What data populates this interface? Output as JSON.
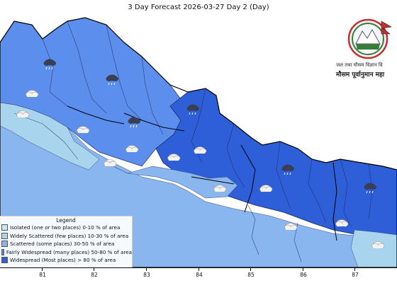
{
  "title": "3 Day Forecast 2026-03-27 Day 2 (Day)",
  "logo": {
    "line1": "जल तथा मौसम विज्ञान वि",
    "line2": "मौसम पूर्वानुमान महा"
  },
  "legend": {
    "title": "Legend",
    "items": [
      {
        "label": "Isolated (one or two places)  0-10 % of area",
        "color": "#c9e8f5"
      },
      {
        "label": "Widely Scattered (few places)  10-30 % of area",
        "color": "#a9d4ee"
      },
      {
        "label": "Scattered (some places)  30-50 % of area",
        "color": "#8ab6ef"
      },
      {
        "label": "Fairly Widespread (many places)  50-80 % of area",
        "color": "#5c8eee"
      },
      {
        "label": "Widespread (Most places) > 80 % of area",
        "color": "#2e5ed8"
      }
    ]
  },
  "x_axis": {
    "ticks": [
      "81",
      "82",
      "83",
      "84",
      "85",
      "86",
      "87"
    ]
  },
  "weather_icons": [
    {
      "type": "rain-cloud-icon"
    },
    {
      "type": "rain-cloud-icon"
    },
    {
      "type": "rain-cloud-icon"
    },
    {
      "type": "rain-cloud-icon"
    },
    {
      "type": "rain-cloud-icon"
    },
    {
      "type": "rain-cloud-icon"
    },
    {
      "type": "snow-cloud-icon"
    },
    {
      "type": "snow-cloud-icon"
    },
    {
      "type": "snow-cloud-icon"
    },
    {
      "type": "snow-cloud-icon"
    },
    {
      "type": "snow-cloud-icon"
    },
    {
      "type": "snow-cloud-icon"
    },
    {
      "type": "snow-cloud-icon"
    },
    {
      "type": "snow-cloud-icon"
    },
    {
      "type": "snow-cloud-icon"
    },
    {
      "type": "snow-cloud-icon"
    },
    {
      "type": "snow-cloud-icon"
    },
    {
      "type": "snow-cloud-icon"
    }
  ]
}
